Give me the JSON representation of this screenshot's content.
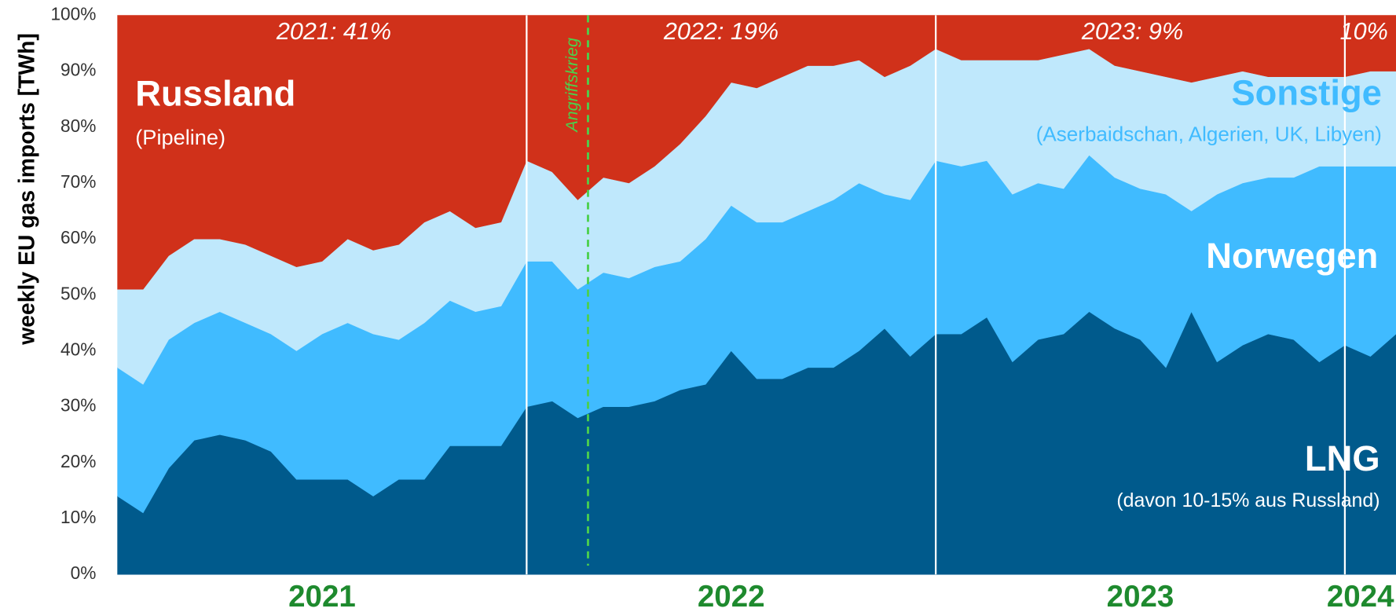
{
  "chart_data": {
    "type": "stacked_area",
    "y_label": "weekly EU gas imports [TWh]",
    "xlim": [
      2021,
      2024.125
    ],
    "ylim": [
      0,
      100
    ],
    "yticks": [
      {
        "value": 0,
        "label": "0%"
      },
      {
        "value": 10,
        "label": "10%"
      },
      {
        "value": 20,
        "label": "20%"
      },
      {
        "value": 30,
        "label": "30%"
      },
      {
        "value": 40,
        "label": "40%"
      },
      {
        "value": 50,
        "label": "50%"
      },
      {
        "value": 60,
        "label": "60%"
      },
      {
        "value": 70,
        "label": "70%"
      },
      {
        "value": 80,
        "label": "80%"
      },
      {
        "value": 90,
        "label": "90%"
      },
      {
        "value": 100,
        "label": "100%"
      }
    ],
    "xticks": [
      {
        "value": 2021.5,
        "label": "2021"
      },
      {
        "value": 2022.5,
        "label": "2022"
      },
      {
        "value": 2023.5,
        "label": "2023"
      },
      {
        "value": 2024.0625,
        "label": "2024"
      }
    ],
    "dividers": [
      2022,
      2023,
      2024
    ],
    "event": {
      "x": 2022.15,
      "label": "Angriffskrieg",
      "color": "#4cd04c"
    },
    "year_notes": [
      "2021: 41%",
      "2022: 19%",
      "2023: 9%",
      "10%"
    ],
    "x": [
      2021,
      2021.0625,
      2021.125,
      2021.1875,
      2021.25,
      2021.3125,
      2021.375,
      2021.4375,
      2021.5,
      2021.5625,
      2021.625,
      2021.6875,
      2021.75,
      2021.8125,
      2021.875,
      2021.9375,
      2022,
      2022.0625,
      2022.125,
      2022.1875,
      2022.25,
      2022.3125,
      2022.375,
      2022.4375,
      2022.5,
      2022.5625,
      2022.625,
      2022.6875,
      2022.75,
      2022.8125,
      2022.875,
      2022.9375,
      2023,
      2023.0625,
      2023.125,
      2023.1875,
      2023.25,
      2023.3125,
      2023.375,
      2023.4375,
      2023.5,
      2023.5625,
      2023.625,
      2023.6875,
      2023.75,
      2023.8125,
      2023.875,
      2023.9375,
      2024,
      2024.0625,
      2024.125
    ],
    "series": [
      {
        "name": "LNG",
        "sublabel": "(davon 10-15% aus Russland)",
        "color": "#005a8c",
        "values": [
          14,
          11,
          19,
          24,
          25,
          24,
          22,
          17,
          17,
          17,
          14,
          17,
          17,
          23,
          23,
          23,
          30,
          31,
          28,
          30,
          30,
          31,
          33,
          34,
          40,
          35,
          35,
          37,
          37,
          40,
          44,
          39,
          43,
          43,
          46,
          38,
          42,
          43,
          47,
          44,
          42,
          37,
          47,
          38,
          41,
          43,
          42,
          38,
          41,
          39,
          43
        ]
      },
      {
        "name": "Norwegen",
        "color": "#40bbff",
        "values": [
          23,
          23,
          23,
          21,
          22,
          21,
          21,
          23,
          26,
          28,
          29,
          25,
          28,
          26,
          24,
          25,
          26,
          25,
          23,
          24,
          23,
          24,
          23,
          26,
          26,
          28,
          28,
          28,
          30,
          30,
          24,
          28,
          31,
          30,
          28,
          30,
          28,
          26,
          28,
          27,
          27,
          31,
          18,
          30,
          29,
          28,
          29,
          35,
          32,
          34,
          30
        ]
      },
      {
        "name": "Sonstige",
        "sublabel": "(Aserbaidschan, Algerien, UK, Libyen)",
        "color": "#bfe8fc",
        "values": [
          14,
          17,
          15,
          15,
          13,
          14,
          14,
          15,
          13,
          15,
          15,
          17,
          18,
          16,
          15,
          15,
          18,
          16,
          16,
          17,
          17,
          18,
          21,
          22,
          22,
          24,
          26,
          26,
          24,
          22,
          21,
          24,
          20,
          19,
          18,
          24,
          22,
          24,
          19,
          20,
          21,
          21,
          23,
          21,
          20,
          18,
          18,
          16,
          16,
          17,
          17
        ]
      },
      {
        "name": "Russland",
        "sublabel": "(Pipeline)",
        "color": "#d0311a",
        "values": [
          49,
          49,
          43,
          40,
          40,
          41,
          43,
          45,
          44,
          40,
          42,
          41,
          37,
          35,
          38,
          37,
          26,
          28,
          33,
          29,
          30,
          27,
          23,
          18,
          12,
          13,
          11,
          9,
          9,
          8,
          11,
          9,
          6,
          8,
          8,
          8,
          8,
          7,
          6,
          9,
          10,
          11,
          12,
          11,
          10,
          11,
          11,
          11,
          11,
          10,
          10
        ]
      }
    ]
  }
}
